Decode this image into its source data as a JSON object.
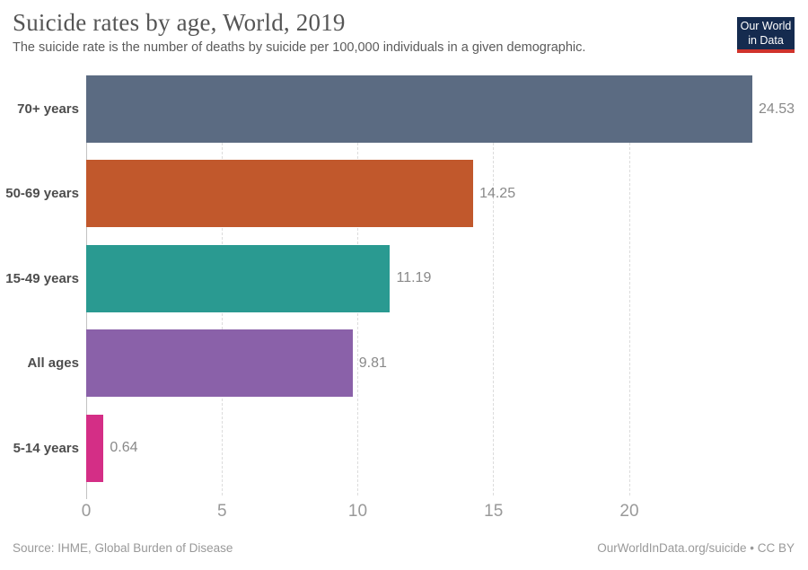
{
  "header": {
    "title": "Suicide rates by age, World, 2019",
    "subtitle": "The suicide rate is the number of deaths by suicide per 100,000 individuals in a given demographic."
  },
  "logo": {
    "line1": "Our World",
    "line2": "in Data",
    "background": "#152b4f",
    "accent": "#d0342c"
  },
  "footer": {
    "source": "Source: IHME, Global Burden of Disease",
    "license": "OurWorldInData.org/suicide • CC BY"
  },
  "chart_data": {
    "type": "bar",
    "orientation": "horizontal",
    "title": "Suicide rates by age, World, 2019",
    "unit": "deaths by suicide per 100,000 individuals",
    "categories": [
      "70+ years",
      "50-69 years",
      "15-49 years",
      "All ages",
      "5-14 years"
    ],
    "values": [
      24.53,
      14.25,
      11.19,
      9.81,
      0.64
    ],
    "value_labels": [
      "24.53",
      "14.25",
      "11.19",
      "9.81",
      "0.64"
    ],
    "bar_colors": [
      "#5b6b82",
      "#c1582c",
      "#2a9a91",
      "#8a61a9",
      "#d42e86"
    ],
    "xticks": [
      0,
      5,
      10,
      15,
      20
    ],
    "xtick_labels": [
      "0",
      "5",
      "10",
      "15",
      "20"
    ],
    "xlim": [
      0,
      26.5
    ],
    "grid": "dashed-vertical",
    "legend": "none"
  }
}
